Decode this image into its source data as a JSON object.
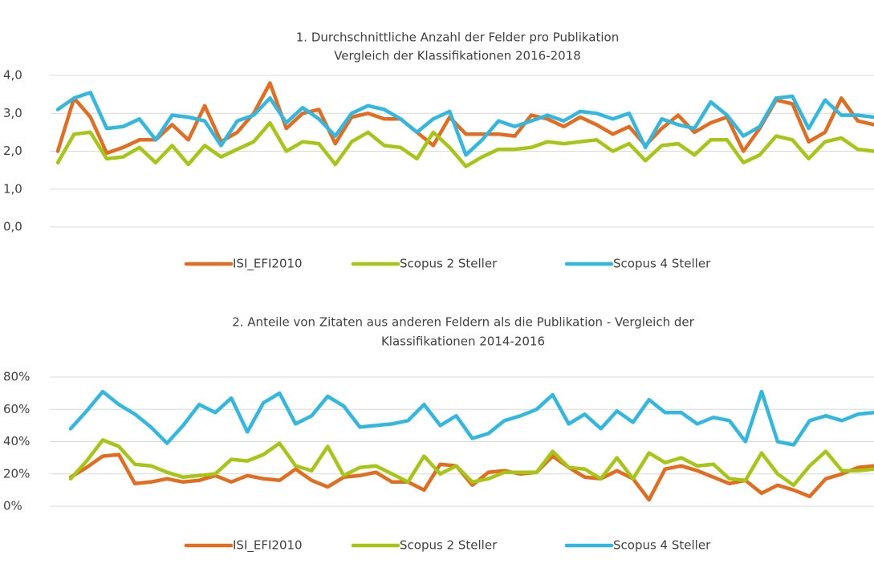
{
  "chart_data": [
    {
      "type": "line",
      "title_lines": [
        "1. Durchschnittliche Anzahl der Felder pro Publikation",
        "Vergleich der Klassifikationen 2016-2018"
      ],
      "categories": [
        null,
        null,
        null,
        null,
        null,
        null,
        null,
        null,
        null,
        null,
        null,
        null,
        null,
        null,
        null,
        null,
        null,
        null,
        null,
        null,
        null,
        null,
        null,
        null,
        null,
        null,
        null,
        null,
        null,
        null,
        null,
        null,
        null,
        null,
        null,
        null,
        null,
        null,
        null,
        null,
        null,
        null,
        null,
        null,
        null,
        null,
        null,
        null,
        null,
        null,
        null
      ],
      "series": [
        {
          "name": "ISI_EFI2010",
          "color": "#e46c1e",
          "values": [
            2.0,
            3.4,
            2.9,
            1.95,
            2.1,
            2.3,
            2.3,
            2.7,
            2.3,
            3.2,
            2.25,
            2.5,
            3.0,
            3.8,
            2.6,
            3.0,
            3.1,
            2.2,
            2.9,
            3.0,
            2.85,
            2.85,
            2.5,
            2.15,
            2.9,
            2.45,
            2.45,
            2.45,
            2.4,
            2.95,
            2.85,
            2.65,
            2.9,
            2.7,
            2.45,
            2.65,
            2.15,
            2.6,
            2.95,
            2.5,
            2.75,
            2.9,
            2.0,
            2.6,
            3.35,
            3.25,
            2.25,
            2.5,
            3.4,
            2.8,
            2.7
          ]
        },
        {
          "name": "Scopus 2 Steller",
          "color": "#a5c615",
          "values": [
            1.7,
            2.45,
            2.5,
            1.8,
            1.85,
            2.1,
            1.7,
            2.15,
            1.65,
            2.15,
            1.85,
            2.05,
            2.25,
            2.75,
            2.0,
            2.25,
            2.2,
            1.65,
            2.25,
            2.5,
            2.15,
            2.1,
            1.8,
            2.5,
            2.1,
            1.6,
            1.85,
            2.05,
            2.05,
            2.1,
            2.25,
            2.2,
            2.25,
            2.3,
            2.0,
            2.2,
            1.75,
            2.15,
            2.2,
            1.9,
            2.3,
            2.3,
            1.7,
            1.9,
            2.4,
            2.3,
            1.8,
            2.25,
            2.35,
            2.05,
            2.0
          ]
        },
        {
          "name": "Scopus 4 Steller",
          "color": "#31b8e1",
          "values": [
            3.1,
            3.4,
            3.55,
            2.6,
            2.65,
            2.85,
            2.3,
            2.95,
            2.9,
            2.8,
            2.15,
            2.8,
            2.95,
            3.4,
            2.75,
            3.15,
            2.85,
            2.4,
            3.0,
            3.2,
            3.1,
            2.85,
            2.5,
            2.85,
            3.05,
            1.9,
            2.3,
            2.8,
            2.65,
            2.8,
            2.95,
            2.8,
            3.05,
            3.0,
            2.85,
            3.0,
            2.1,
            2.85,
            2.7,
            2.6,
            3.3,
            2.95,
            2.4,
            2.65,
            3.4,
            3.45,
            2.6,
            3.35,
            2.95,
            2.95,
            2.9
          ]
        }
      ],
      "ylim": [
        0,
        4
      ],
      "yticks": [
        {
          "value": 0,
          "label": "0,0"
        },
        {
          "value": 1,
          "label": "1,0"
        },
        {
          "value": 2,
          "label": "2,0"
        },
        {
          "value": 3,
          "label": "3,0"
        },
        {
          "value": 4,
          "label": "4,0"
        }
      ],
      "grid": true,
      "legend": "bottom"
    },
    {
      "type": "line",
      "title_lines": [
        "2. Anteile von Zitaten aus anderen Feldern als die Publikation - Vergleich der",
        "Klassifikationen 2014-2016"
      ],
      "categories": [
        null,
        null,
        null,
        null,
        null,
        null,
        null,
        null,
        null,
        null,
        null,
        null,
        null,
        null,
        null,
        null,
        null,
        null,
        null,
        null,
        null,
        null,
        null,
        null,
        null,
        null,
        null,
        null,
        null,
        null,
        null,
        null,
        null,
        null,
        null,
        null,
        null,
        null,
        null,
        null,
        null,
        null,
        null,
        null,
        null,
        null,
        null,
        null,
        null,
        null,
        null
      ],
      "series": [
        {
          "name": "ISI_EFI2010",
          "color": "#e46c1e",
          "values": [
            18,
            24,
            31,
            32,
            14,
            15,
            17,
            15,
            16,
            19,
            15,
            19,
            17,
            16,
            23,
            16,
            12,
            18,
            19,
            21,
            15,
            15,
            10,
            26,
            25,
            13,
            21,
            22,
            20,
            21,
            31,
            24,
            18,
            17,
            22,
            17,
            4,
            23,
            25,
            22,
            18,
            14,
            16,
            8,
            13,
            10,
            6,
            17,
            20,
            24,
            25
          ]
        },
        {
          "name": "Scopus 2 Steller",
          "color": "#a5c615",
          "values": [
            17,
            28,
            41,
            37,
            26,
            25,
            21,
            18,
            19,
            20,
            29,
            28,
            32,
            39,
            25,
            22,
            37,
            19,
            24,
            25,
            20,
            15,
            31,
            20,
            25,
            15,
            17,
            21,
            21,
            21,
            34,
            24,
            23,
            17,
            30,
            17,
            33,
            27,
            30,
            25,
            26,
            17,
            16,
            33,
            20,
            13,
            25,
            34,
            22,
            22,
            23
          ]
        },
        {
          "name": "Scopus 4 Steller",
          "color": "#31b8e1",
          "values": [
            48,
            59,
            71,
            63,
            57,
            49,
            39,
            50,
            63,
            58,
            67,
            46,
            64,
            70,
            51,
            56,
            68,
            62,
            49,
            50,
            51,
            53,
            63,
            50,
            56,
            42,
            45,
            53,
            56,
            60,
            69,
            51,
            57,
            48,
            59,
            52,
            66,
            58,
            58,
            51,
            55,
            53,
            40,
            71,
            40,
            38,
            53,
            56,
            53,
            57,
            58
          ]
        }
      ],
      "ylim": [
        0,
        80
      ],
      "yticks": [
        {
          "value": 0,
          "label": "0%"
        },
        {
          "value": 20,
          "label": "20%"
        },
        {
          "value": 40,
          "label": "40%"
        },
        {
          "value": 60,
          "label": "60%"
        },
        {
          "value": 80,
          "label": "80%"
        }
      ],
      "grid": true,
      "legend": "bottom"
    }
  ]
}
